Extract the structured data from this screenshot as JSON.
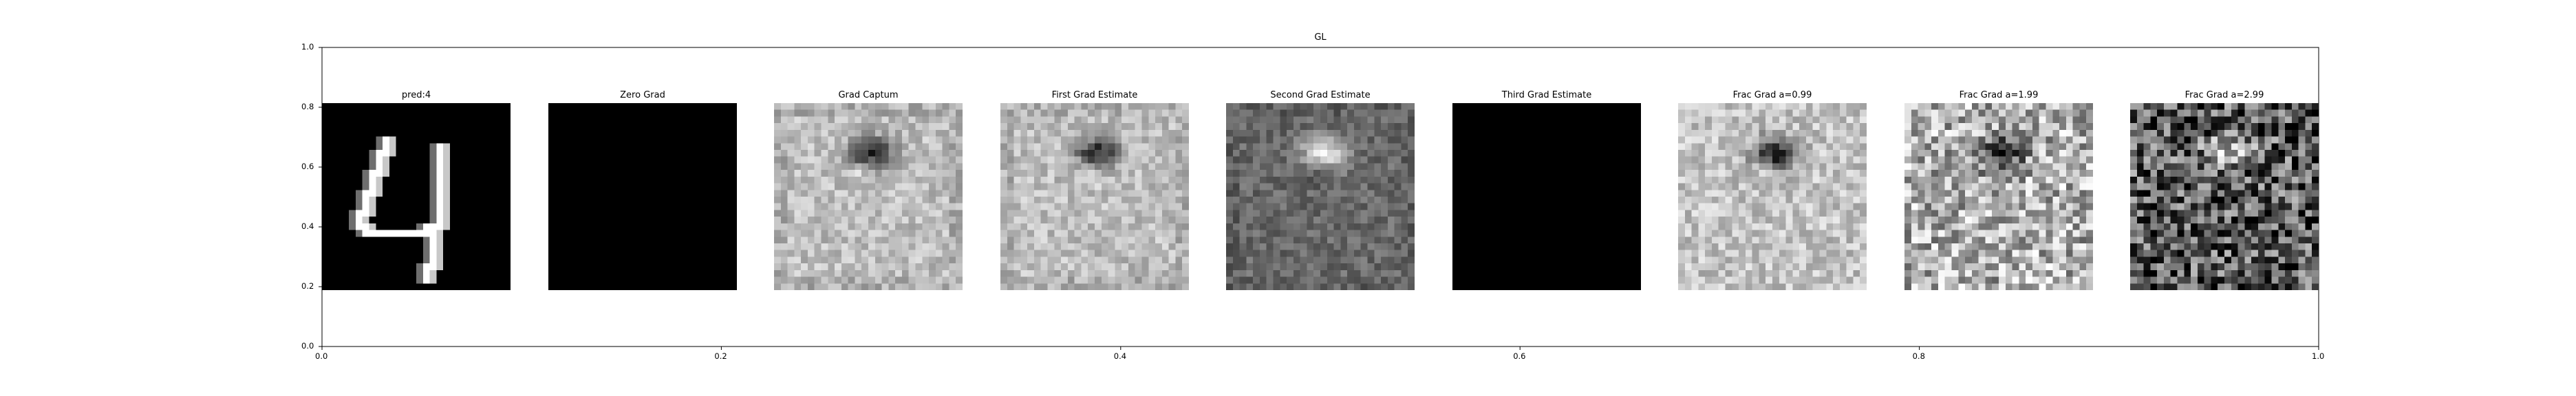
{
  "chart_data": {
    "type": "heatmap",
    "title": "GL",
    "xlim": [
      0.0,
      1.0
    ],
    "ylim": [
      0.0,
      1.0
    ],
    "xticks": [
      "0.0",
      "0.2",
      "0.4",
      "0.6",
      "0.8",
      "1.0"
    ],
    "yticks": [
      "0.0",
      "0.2",
      "0.4",
      "0.6",
      "0.8",
      "1.0"
    ],
    "grid": false,
    "colormap": "gray",
    "panels": [
      {
        "title": "pred:4",
        "content": "digit-4"
      },
      {
        "title": "Zero Grad",
        "content": "black"
      },
      {
        "title": "Grad Captum",
        "content": "saliency-soft"
      },
      {
        "title": "First Grad Estimate",
        "content": "saliency-soft"
      },
      {
        "title": "Second Grad Estimate",
        "content": "saliency-inverted"
      },
      {
        "title": "Third Grad Estimate",
        "content": "black"
      },
      {
        "title": "Frac Grad a=0.99",
        "content": "saliency-sharp"
      },
      {
        "title": "Frac Grad a=1.99",
        "content": "saliency-noisy"
      },
      {
        "title": "Frac Grad a=2.99",
        "content": "saliency-very-noisy"
      }
    ]
  }
}
